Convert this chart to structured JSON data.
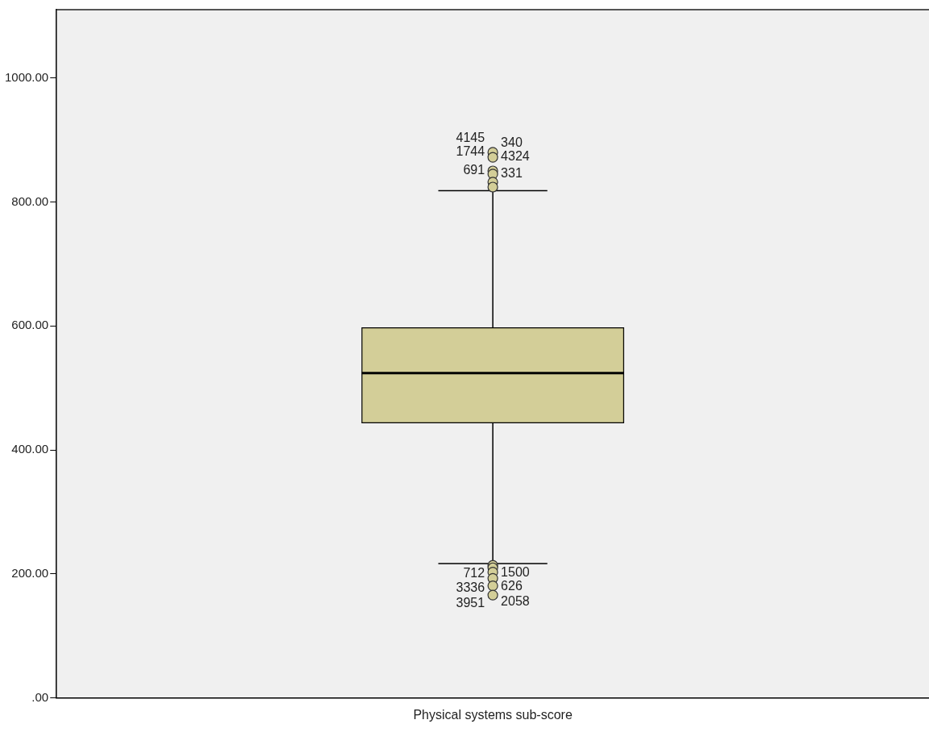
{
  "chart_data": {
    "type": "box",
    "categories": [
      "Physical systems sub-score"
    ],
    "boxes": [
      {
        "low": 217,
        "q1": 444,
        "median": 524,
        "q3": 597,
        "high": 818,
        "outliers": [
          880,
          872,
          850,
          845,
          832,
          824,
          214,
          210,
          203,
          193,
          181,
          166
        ]
      }
    ],
    "color": "#d3ce98",
    "ylim": [
      0,
      1110
    ],
    "yticks": [
      {
        "value": 0,
        "label": ".00"
      },
      {
        "value": 200,
        "label": "200.00"
      },
      {
        "value": 400,
        "label": "400.00"
      },
      {
        "value": 600,
        "label": "600.00"
      },
      {
        "value": 800,
        "label": "800.00"
      },
      {
        "value": 1000,
        "label": "1000.00"
      }
    ],
    "grid": false,
    "legend": false,
    "annotations": [
      "1744",
      "4324",
      "691",
      "331",
      "4145",
      "340",
      "712",
      "1500",
      "3336",
      "626",
      "3951",
      "2058"
    ]
  }
}
